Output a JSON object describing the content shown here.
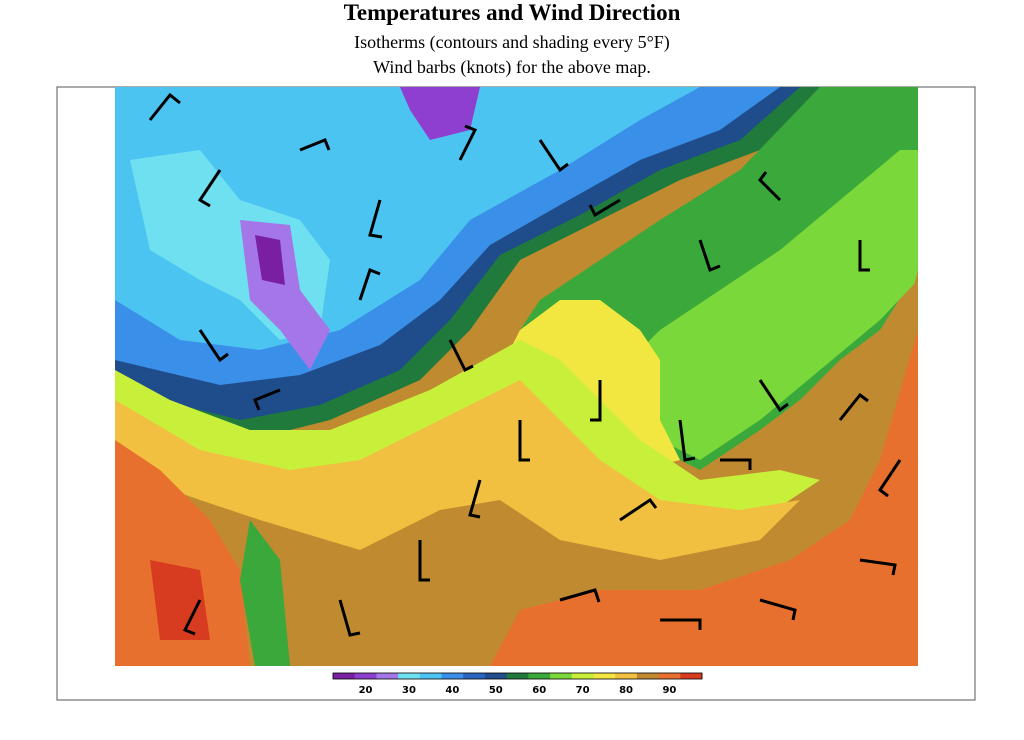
{
  "header": {
    "title": "Temperatures and Wind Direction",
    "subtitle": "Isotherms (contours and shading every 5°F)",
    "note": "Wind barbs (knots) for the above map."
  },
  "colorbar": {
    "colors": [
      "#7a1fa2",
      "#8e3fd0",
      "#a476e8",
      "#6fe0f0",
      "#4cc4f2",
      "#3a90e8",
      "#2a64c0",
      "#1f4d8c",
      "#1f7a3c",
      "#3aa83a",
      "#7ad83a",
      "#c8f03a",
      "#f2e640",
      "#f2c040",
      "#c08a30",
      "#e8702e",
      "#d83c20"
    ],
    "labels": [
      20,
      30,
      40,
      50,
      60,
      70,
      80,
      90
    ]
  }
}
